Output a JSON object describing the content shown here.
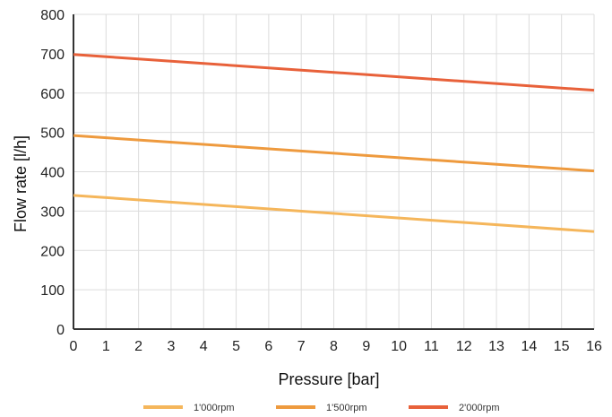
{
  "chart_data": {
    "type": "line",
    "xlabel": "Pressure [bar]",
    "ylabel": "Flow rate [l/h]",
    "xlim": [
      0,
      16
    ],
    "ylim": [
      0,
      800
    ],
    "x_ticks": [
      0,
      1,
      2,
      3,
      4,
      5,
      6,
      7,
      8,
      9,
      10,
      11,
      12,
      13,
      14,
      15,
      16
    ],
    "y_ticks": [
      0,
      100,
      200,
      300,
      400,
      500,
      600,
      700,
      800
    ],
    "grid": true,
    "legend_position": "bottom",
    "series": [
      {
        "name": "1'000rpm",
        "color": "#F5B65B",
        "x": [
          0,
          16
        ],
        "y": [
          340,
          248
        ]
      },
      {
        "name": "1'500rpm",
        "color": "#EE9A3E",
        "x": [
          0,
          16
        ],
        "y": [
          492,
          402
        ]
      },
      {
        "name": "2'000rpm",
        "color": "#E8613A",
        "x": [
          0,
          16
        ],
        "y": [
          698,
          607
        ]
      }
    ]
  }
}
